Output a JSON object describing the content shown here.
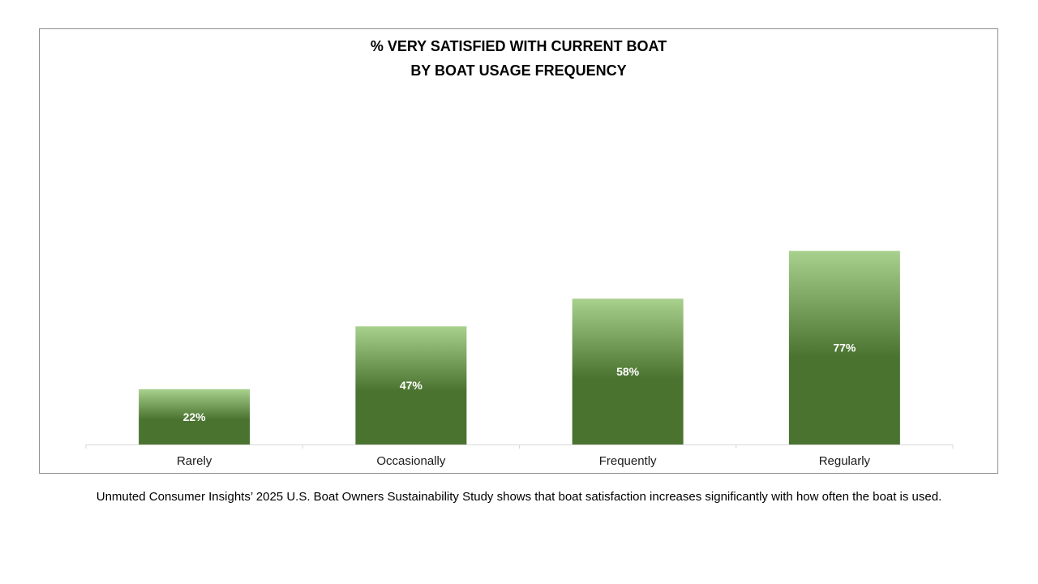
{
  "chart_data": {
    "type": "bar",
    "title_lines": [
      "% VERY SATISFIED WITH CURRENT BOAT",
      "BY BOAT USAGE FREQUENCY"
    ],
    "categories": [
      "Rarely",
      "Occasionally",
      "Frequently",
      "Regularly"
    ],
    "values": [
      22,
      47,
      58,
      77
    ],
    "value_labels": [
      "22%",
      "47%",
      "58%",
      "77%"
    ],
    "ylim": [
      0,
      100
    ],
    "grid": false,
    "legend": "none",
    "colors": {
      "bar_top": "#a9d18e",
      "bar_bottom": "#4a7330",
      "axis": "#d9d9d9",
      "label": "#ffffff"
    }
  },
  "caption": "Unmuted Consumer Insights’ 2025 U.S. Boat Owners Sustainability Study shows that boat satisfaction increases significantly with how often the boat is used."
}
